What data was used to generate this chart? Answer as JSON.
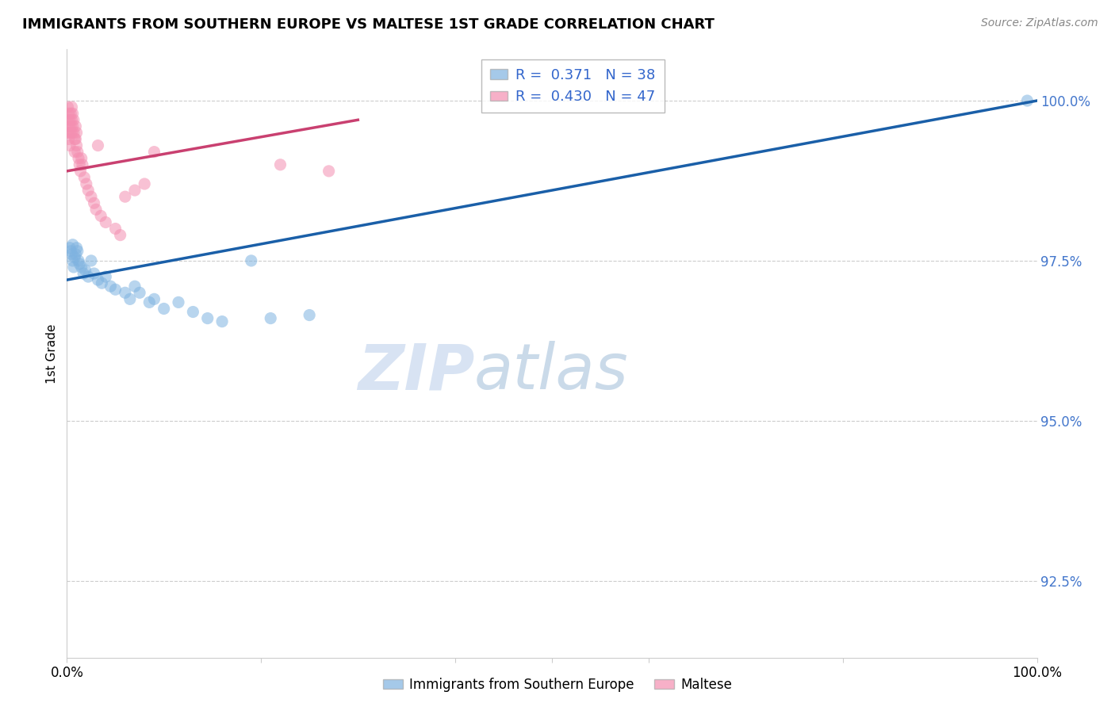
{
  "title": "IMMIGRANTS FROM SOUTHERN EUROPE VS MALTESE 1ST GRADE CORRELATION CHART",
  "source": "Source: ZipAtlas.com",
  "ylabel": "1st Grade",
  "yticks": [
    92.5,
    95.0,
    97.5,
    100.0
  ],
  "ytick_labels": [
    "92.5%",
    "95.0%",
    "97.5%",
    "100.0%"
  ],
  "xlim": [
    0.0,
    1.0
  ],
  "ylim": [
    91.3,
    100.8
  ],
  "legend_blue_r": "0.371",
  "legend_blue_n": "38",
  "legend_pink_r": "0.430",
  "legend_pink_n": "47",
  "blue_color": "#7fb3e0",
  "pink_color": "#f48fb1",
  "blue_line_color": "#1a5fa8",
  "pink_line_color": "#c94070",
  "blue_scatter_x": [
    0.003,
    0.004,
    0.005,
    0.006,
    0.006,
    0.007,
    0.008,
    0.009,
    0.01,
    0.011,
    0.012,
    0.013,
    0.015,
    0.017,
    0.019,
    0.022,
    0.025,
    0.028,
    0.032,
    0.036,
    0.04,
    0.045,
    0.05,
    0.06,
    0.065,
    0.07,
    0.075,
    0.085,
    0.09,
    0.1,
    0.115,
    0.13,
    0.145,
    0.16,
    0.19,
    0.21,
    0.25,
    0.99
  ],
  "blue_scatter_y": [
    97.7,
    97.65,
    97.6,
    97.75,
    97.5,
    97.4,
    97.55,
    97.6,
    97.7,
    97.65,
    97.5,
    97.45,
    97.4,
    97.3,
    97.35,
    97.25,
    97.5,
    97.3,
    97.2,
    97.15,
    97.25,
    97.1,
    97.05,
    97.0,
    96.9,
    97.1,
    97.0,
    96.85,
    96.9,
    96.75,
    96.85,
    96.7,
    96.6,
    96.55,
    97.5,
    96.6,
    96.65,
    100.0
  ],
  "pink_scatter_x": [
    0.001,
    0.001,
    0.001,
    0.002,
    0.002,
    0.002,
    0.003,
    0.003,
    0.003,
    0.004,
    0.004,
    0.005,
    0.005,
    0.005,
    0.006,
    0.006,
    0.007,
    0.007,
    0.008,
    0.008,
    0.009,
    0.009,
    0.01,
    0.01,
    0.011,
    0.012,
    0.013,
    0.014,
    0.015,
    0.016,
    0.018,
    0.02,
    0.022,
    0.025,
    0.028,
    0.03,
    0.032,
    0.035,
    0.04,
    0.05,
    0.055,
    0.06,
    0.07,
    0.08,
    0.09,
    0.22,
    0.27
  ],
  "pink_scatter_y": [
    99.9,
    99.7,
    99.5,
    99.8,
    99.6,
    99.4,
    99.7,
    99.5,
    99.3,
    99.8,
    99.6,
    99.9,
    99.7,
    99.5,
    99.8,
    99.6,
    99.7,
    99.5,
    99.4,
    99.2,
    99.6,
    99.4,
    99.5,
    99.3,
    99.2,
    99.1,
    99.0,
    98.9,
    99.1,
    99.0,
    98.8,
    98.7,
    98.6,
    98.5,
    98.4,
    98.3,
    99.3,
    98.2,
    98.1,
    98.0,
    97.9,
    98.5,
    98.6,
    98.7,
    99.2,
    99.0,
    98.9
  ],
  "blue_line_x": [
    0.0,
    1.0
  ],
  "blue_line_y": [
    97.2,
    100.0
  ],
  "pink_line_x": [
    0.0,
    0.3
  ],
  "pink_line_y": [
    98.9,
    99.7
  ]
}
